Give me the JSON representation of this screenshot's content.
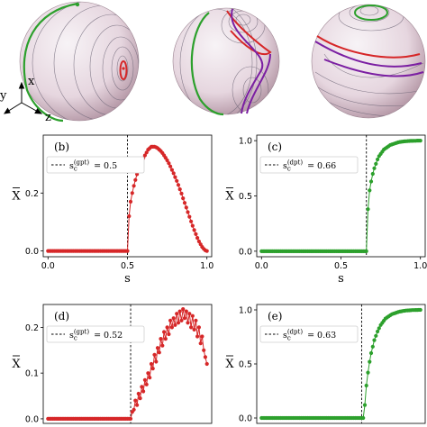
{
  "colors": {
    "red": "#d62728",
    "green": "#2ca02c",
    "purple": "#7b1fa2",
    "sphere_light": "#f3eef2",
    "sphere_dark": "#b38fa0"
  },
  "spheres_panel": {
    "axis_labels": {
      "x": "x",
      "y": "y",
      "z": "z"
    }
  },
  "chart_data": [
    {
      "id": "b",
      "type": "line",
      "panel_letter": "(b)",
      "legend": "= 0.5",
      "legend_symbol": "s",
      "legend_sup": "(gpt)",
      "legend_sub": "c",
      "critical_s": 0.5,
      "color": "red",
      "xlabel": "s",
      "ylabel": "X",
      "xlim": [
        -0.03,
        1.03
      ],
      "ylim": [
        -0.02,
        0.4
      ],
      "xticks": [
        0.0,
        0.5,
        1.0
      ],
      "xtick_labels": [
        "0.0",
        "0.5",
        "1.0"
      ],
      "yticks": [
        0.0,
        0.2
      ],
      "ytick_labels": [
        "0.0",
        "0.2"
      ],
      "show_xlabel": true,
      "series": [
        {
          "x": [
            0.0,
            0.01,
            0.02,
            0.03,
            0.04,
            0.05,
            0.06,
            0.07,
            0.08,
            0.09,
            0.1,
            0.11,
            0.12,
            0.13,
            0.14,
            0.15,
            0.16,
            0.17,
            0.18,
            0.19,
            0.2,
            0.21,
            0.22,
            0.23,
            0.24,
            0.25,
            0.26,
            0.27,
            0.28,
            0.29,
            0.3,
            0.31,
            0.32,
            0.33,
            0.34,
            0.35,
            0.36,
            0.37,
            0.38,
            0.39,
            0.4,
            0.41,
            0.42,
            0.43,
            0.44,
            0.45,
            0.46,
            0.47,
            0.48,
            0.49,
            0.5,
            0.51,
            0.52,
            0.53,
            0.54,
            0.55,
            0.56,
            0.57,
            0.58,
            0.59,
            0.6,
            0.61,
            0.62,
            0.63,
            0.64,
            0.65,
            0.66,
            0.67,
            0.68,
            0.69,
            0.7,
            0.71,
            0.72,
            0.73,
            0.74,
            0.75,
            0.76,
            0.77,
            0.78,
            0.79,
            0.8,
            0.81,
            0.82,
            0.83,
            0.84,
            0.85,
            0.86,
            0.87,
            0.88,
            0.89,
            0.9,
            0.91,
            0.92,
            0.93,
            0.94,
            0.95,
            0.96,
            0.97,
            0.98,
            0.99,
            1.0
          ],
          "y": [
            0.0,
            0.0,
            0.0,
            0.0,
            0.0,
            0.0,
            0.0,
            0.0,
            0.0,
            0.0,
            0.0,
            0.0,
            0.0,
            0.0,
            0.0,
            0.0,
            0.0,
            0.0,
            0.0,
            0.0,
            0.0,
            0.0,
            0.0,
            0.0,
            0.0,
            0.0,
            0.0,
            0.0,
            0.0,
            0.0,
            0.0,
            0.0,
            0.0,
            0.0,
            0.0,
            0.0,
            0.0,
            0.0,
            0.0,
            0.0,
            0.0,
            0.0,
            0.0,
            0.0,
            0.0,
            0.0,
            0.0,
            0.0,
            0.0,
            0.0,
            0.0,
            0.12,
            0.17,
            0.2,
            0.225,
            0.245,
            0.265,
            0.28,
            0.295,
            0.31,
            0.32,
            0.33,
            0.34,
            0.35,
            0.355,
            0.36,
            0.36,
            0.36,
            0.358,
            0.355,
            0.35,
            0.345,
            0.338,
            0.33,
            0.322,
            0.313,
            0.303,
            0.292,
            0.28,
            0.268,
            0.255,
            0.242,
            0.228,
            0.213,
            0.198,
            0.182,
            0.166,
            0.15,
            0.134,
            0.118,
            0.102,
            0.087,
            0.072,
            0.058,
            0.045,
            0.033,
            0.023,
            0.014,
            0.007,
            0.002,
            0.0
          ]
        }
      ]
    },
    {
      "id": "c",
      "type": "line",
      "panel_letter": "(c)",
      "legend": "= 0.66",
      "legend_symbol": "s",
      "legend_sup": "(dpt)",
      "legend_sub": "c",
      "critical_s": 0.66,
      "color": "green",
      "xlabel": "s",
      "ylabel": "X",
      "xlim": [
        -0.03,
        1.03
      ],
      "ylim": [
        -0.05,
        1.05
      ],
      "xticks": [
        0.0,
        0.5,
        1.0
      ],
      "xtick_labels": [
        "0.0",
        "0.5",
        "1.0"
      ],
      "yticks": [
        0.0,
        0.5,
        1.0
      ],
      "ytick_labels": [
        "0.0",
        "0.5",
        "1.0"
      ],
      "show_xlabel": true,
      "series": [
        {
          "x": [
            0.0,
            0.01,
            0.02,
            0.03,
            0.04,
            0.05,
            0.06,
            0.07,
            0.08,
            0.09,
            0.1,
            0.11,
            0.12,
            0.13,
            0.14,
            0.15,
            0.16,
            0.17,
            0.18,
            0.19,
            0.2,
            0.21,
            0.22,
            0.23,
            0.24,
            0.25,
            0.26,
            0.27,
            0.28,
            0.29,
            0.3,
            0.31,
            0.32,
            0.33,
            0.34,
            0.35,
            0.36,
            0.37,
            0.38,
            0.39,
            0.4,
            0.41,
            0.42,
            0.43,
            0.44,
            0.45,
            0.46,
            0.47,
            0.48,
            0.49,
            0.5,
            0.51,
            0.52,
            0.53,
            0.54,
            0.55,
            0.56,
            0.57,
            0.58,
            0.59,
            0.6,
            0.61,
            0.62,
            0.63,
            0.64,
            0.65,
            0.66,
            0.67,
            0.68,
            0.69,
            0.7,
            0.71,
            0.72,
            0.73,
            0.74,
            0.75,
            0.76,
            0.77,
            0.78,
            0.79,
            0.8,
            0.81,
            0.82,
            0.83,
            0.84,
            0.85,
            0.86,
            0.87,
            0.88,
            0.89,
            0.9,
            0.91,
            0.92,
            0.93,
            0.94,
            0.95,
            0.96,
            0.97,
            0.98,
            0.99,
            1.0
          ],
          "y": [
            0.0,
            0.0,
            0.0,
            0.0,
            0.0,
            0.0,
            0.0,
            0.0,
            0.0,
            0.0,
            0.0,
            0.0,
            0.0,
            0.0,
            0.0,
            0.0,
            0.0,
            0.0,
            0.0,
            0.0,
            0.0,
            0.0,
            0.0,
            0.0,
            0.0,
            0.0,
            0.0,
            0.0,
            0.0,
            0.0,
            0.0,
            0.0,
            0.0,
            0.0,
            0.0,
            0.0,
            0.0,
            0.0,
            0.0,
            0.0,
            0.0,
            0.0,
            0.0,
            0.0,
            0.0,
            0.0,
            0.0,
            0.0,
            0.0,
            0.0,
            0.0,
            0.0,
            0.0,
            0.0,
            0.0,
            0.0,
            0.0,
            0.0,
            0.0,
            0.0,
            0.0,
            0.0,
            0.0,
            0.0,
            0.0,
            0.0,
            0.0,
            0.38,
            0.55,
            0.63,
            0.7,
            0.75,
            0.79,
            0.83,
            0.86,
            0.88,
            0.9,
            0.92,
            0.93,
            0.94,
            0.95,
            0.96,
            0.965,
            0.97,
            0.975,
            0.98,
            0.985,
            0.988,
            0.99,
            0.992,
            0.994,
            0.995,
            0.996,
            0.997,
            0.998,
            0.998,
            0.999,
            0.999,
            1.0,
            1.0,
            1.0
          ]
        }
      ]
    },
    {
      "id": "d",
      "type": "line",
      "panel_letter": "(d)",
      "legend": "= 0.52",
      "legend_symbol": "s",
      "legend_sup": "(gpt)",
      "legend_sub": "c",
      "critical_s": 0.52,
      "color": "red",
      "xlabel": "",
      "ylabel": "X",
      "xlim": [
        -0.03,
        1.03
      ],
      "ylim": [
        -0.01,
        0.25
      ],
      "xticks": [],
      "xtick_labels": [],
      "yticks": [
        0.0,
        0.1,
        0.2
      ],
      "ytick_labels": [
        "0.0",
        "0.1",
        "0.2"
      ],
      "show_xlabel": false,
      "series": [
        {
          "x": [
            0.0,
            0.01,
            0.02,
            0.03,
            0.04,
            0.05,
            0.06,
            0.07,
            0.08,
            0.09,
            0.1,
            0.11,
            0.12,
            0.13,
            0.14,
            0.15,
            0.16,
            0.17,
            0.18,
            0.19,
            0.2,
            0.21,
            0.22,
            0.23,
            0.24,
            0.25,
            0.26,
            0.27,
            0.28,
            0.29,
            0.3,
            0.31,
            0.32,
            0.33,
            0.34,
            0.35,
            0.36,
            0.37,
            0.38,
            0.39,
            0.4,
            0.41,
            0.42,
            0.43,
            0.44,
            0.45,
            0.46,
            0.47,
            0.48,
            0.49,
            0.5,
            0.51,
            0.52,
            0.53,
            0.54,
            0.55,
            0.56,
            0.57,
            0.58,
            0.59,
            0.6,
            0.61,
            0.62,
            0.63,
            0.64,
            0.65,
            0.66,
            0.67,
            0.68,
            0.69,
            0.7,
            0.71,
            0.72,
            0.73,
            0.74,
            0.75,
            0.76,
            0.77,
            0.78,
            0.79,
            0.8,
            0.81,
            0.82,
            0.83,
            0.84,
            0.85,
            0.86,
            0.87,
            0.88,
            0.89,
            0.9,
            0.91,
            0.92,
            0.93,
            0.94,
            0.95,
            0.96,
            0.97,
            0.98,
            0.99,
            1.0
          ],
          "y": [
            0.0,
            0.0,
            0.0,
            0.0,
            0.0,
            0.0,
            0.0,
            0.0,
            0.0,
            0.0,
            0.0,
            0.0,
            0.0,
            0.0,
            0.0,
            0.0,
            0.0,
            0.0,
            0.0,
            0.0,
            0.0,
            0.0,
            0.0,
            0.0,
            0.0,
            0.0,
            0.0,
            0.0,
            0.0,
            0.0,
            0.0,
            0.0,
            0.0,
            0.0,
            0.0,
            0.0,
            0.0,
            0.0,
            0.0,
            0.0,
            0.0,
            0.0,
            0.0,
            0.0,
            0.0,
            0.0,
            0.0,
            0.0,
            0.0,
            0.0,
            0.0,
            0.0,
            0.0,
            0.015,
            0.02,
            0.04,
            0.03,
            0.055,
            0.045,
            0.07,
            0.06,
            0.085,
            0.075,
            0.1,
            0.09,
            0.12,
            0.11,
            0.14,
            0.125,
            0.155,
            0.145,
            0.175,
            0.16,
            0.19,
            0.175,
            0.2,
            0.185,
            0.215,
            0.2,
            0.22,
            0.205,
            0.23,
            0.21,
            0.235,
            0.215,
            0.24,
            0.22,
            0.235,
            0.21,
            0.23,
            0.2,
            0.225,
            0.195,
            0.215,
            0.18,
            0.2,
            0.165,
            0.18,
            0.15,
            0.135,
            0.12
          ]
        }
      ]
    },
    {
      "id": "e",
      "type": "line",
      "panel_letter": "(e)",
      "legend": "= 0.63",
      "legend_symbol": "s",
      "legend_sup": "(dpt)",
      "legend_sub": "c",
      "critical_s": 0.63,
      "color": "green",
      "xlabel": "",
      "ylabel": "X",
      "xlim": [
        -0.03,
        1.03
      ],
      "ylim": [
        -0.05,
        1.05
      ],
      "xticks": [],
      "xtick_labels": [],
      "yticks": [
        0.0,
        0.5,
        1.0
      ],
      "ytick_labels": [
        "0.0",
        "0.5",
        "1.0"
      ],
      "show_xlabel": false,
      "series": [
        {
          "x": [
            0.0,
            0.01,
            0.02,
            0.03,
            0.04,
            0.05,
            0.06,
            0.07,
            0.08,
            0.09,
            0.1,
            0.11,
            0.12,
            0.13,
            0.14,
            0.15,
            0.16,
            0.17,
            0.18,
            0.19,
            0.2,
            0.21,
            0.22,
            0.23,
            0.24,
            0.25,
            0.26,
            0.27,
            0.28,
            0.29,
            0.3,
            0.31,
            0.32,
            0.33,
            0.34,
            0.35,
            0.36,
            0.37,
            0.38,
            0.39,
            0.4,
            0.41,
            0.42,
            0.43,
            0.44,
            0.45,
            0.46,
            0.47,
            0.48,
            0.49,
            0.5,
            0.51,
            0.52,
            0.53,
            0.54,
            0.55,
            0.56,
            0.57,
            0.58,
            0.59,
            0.6,
            0.61,
            0.62,
            0.63,
            0.64,
            0.65,
            0.66,
            0.67,
            0.68,
            0.69,
            0.7,
            0.71,
            0.72,
            0.73,
            0.74,
            0.75,
            0.76,
            0.77,
            0.78,
            0.79,
            0.8,
            0.81,
            0.82,
            0.83,
            0.84,
            0.85,
            0.86,
            0.87,
            0.88,
            0.89,
            0.9,
            0.91,
            0.92,
            0.93,
            0.94,
            0.95,
            0.96,
            0.97,
            0.98,
            0.99,
            1.0
          ],
          "y": [
            0.0,
            0.0,
            0.0,
            0.0,
            0.0,
            0.0,
            0.0,
            0.0,
            0.0,
            0.0,
            0.0,
            0.0,
            0.0,
            0.0,
            0.0,
            0.0,
            0.0,
            0.0,
            0.0,
            0.0,
            0.0,
            0.0,
            0.0,
            0.0,
            0.0,
            0.0,
            0.0,
            0.0,
            0.0,
            0.0,
            0.0,
            0.0,
            0.0,
            0.0,
            0.0,
            0.0,
            0.0,
            0.0,
            0.0,
            0.0,
            0.0,
            0.0,
            0.0,
            0.0,
            0.0,
            0.0,
            0.0,
            0.0,
            0.0,
            0.0,
            0.0,
            0.0,
            0.0,
            0.0,
            0.0,
            0.0,
            0.0,
            0.0,
            0.0,
            0.0,
            0.0,
            0.0,
            0.0,
            0.0,
            0.0,
            0.12,
            0.3,
            0.42,
            0.52,
            0.6,
            0.66,
            0.72,
            0.76,
            0.8,
            0.83,
            0.86,
            0.88,
            0.9,
            0.92,
            0.93,
            0.94,
            0.95,
            0.96,
            0.965,
            0.97,
            0.975,
            0.98,
            0.984,
            0.987,
            0.99,
            0.992,
            0.994,
            0.995,
            0.996,
            0.997,
            0.998,
            0.998,
            0.999,
            0.999,
            1.0,
            1.0
          ]
        }
      ]
    }
  ]
}
